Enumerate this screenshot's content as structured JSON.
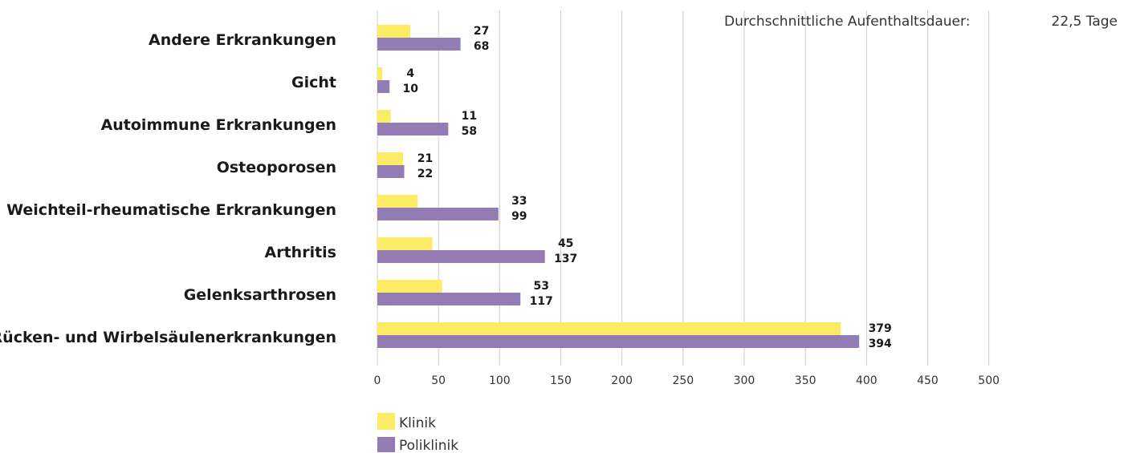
{
  "stat": {
    "label": "Durchschnittliche Aufenthaltsdauer:",
    "value": "22,5 Tage"
  },
  "colors": {
    "klinik": "#fceb64",
    "poliklinik": "#937bb4",
    "grid": "#cccccc"
  },
  "chart_data": {
    "type": "bar",
    "orientation": "horizontal",
    "categories": [
      "Andere Erkrankungen",
      "Gicht",
      "Autoimmune Erkrankungen",
      "Osteoporosen",
      "Weichteil-rheumatische Erkrankungen",
      "Arthritis",
      "Gelenksarthrosen",
      "Rücken- und Wirbelsäulenerkrankungen"
    ],
    "series": [
      {
        "name": "Klinik",
        "values": [
          27,
          4,
          11,
          21,
          33,
          45,
          53,
          379
        ]
      },
      {
        "name": "Poliklinik",
        "values": [
          68,
          10,
          58,
          22,
          99,
          137,
          117,
          394
        ]
      }
    ],
    "xlim": [
      0,
      500
    ],
    "xticks": [
      0,
      50,
      100,
      150,
      200,
      250,
      300,
      350,
      400,
      450,
      500
    ],
    "grid": true,
    "legend_position": "bottom-left"
  }
}
